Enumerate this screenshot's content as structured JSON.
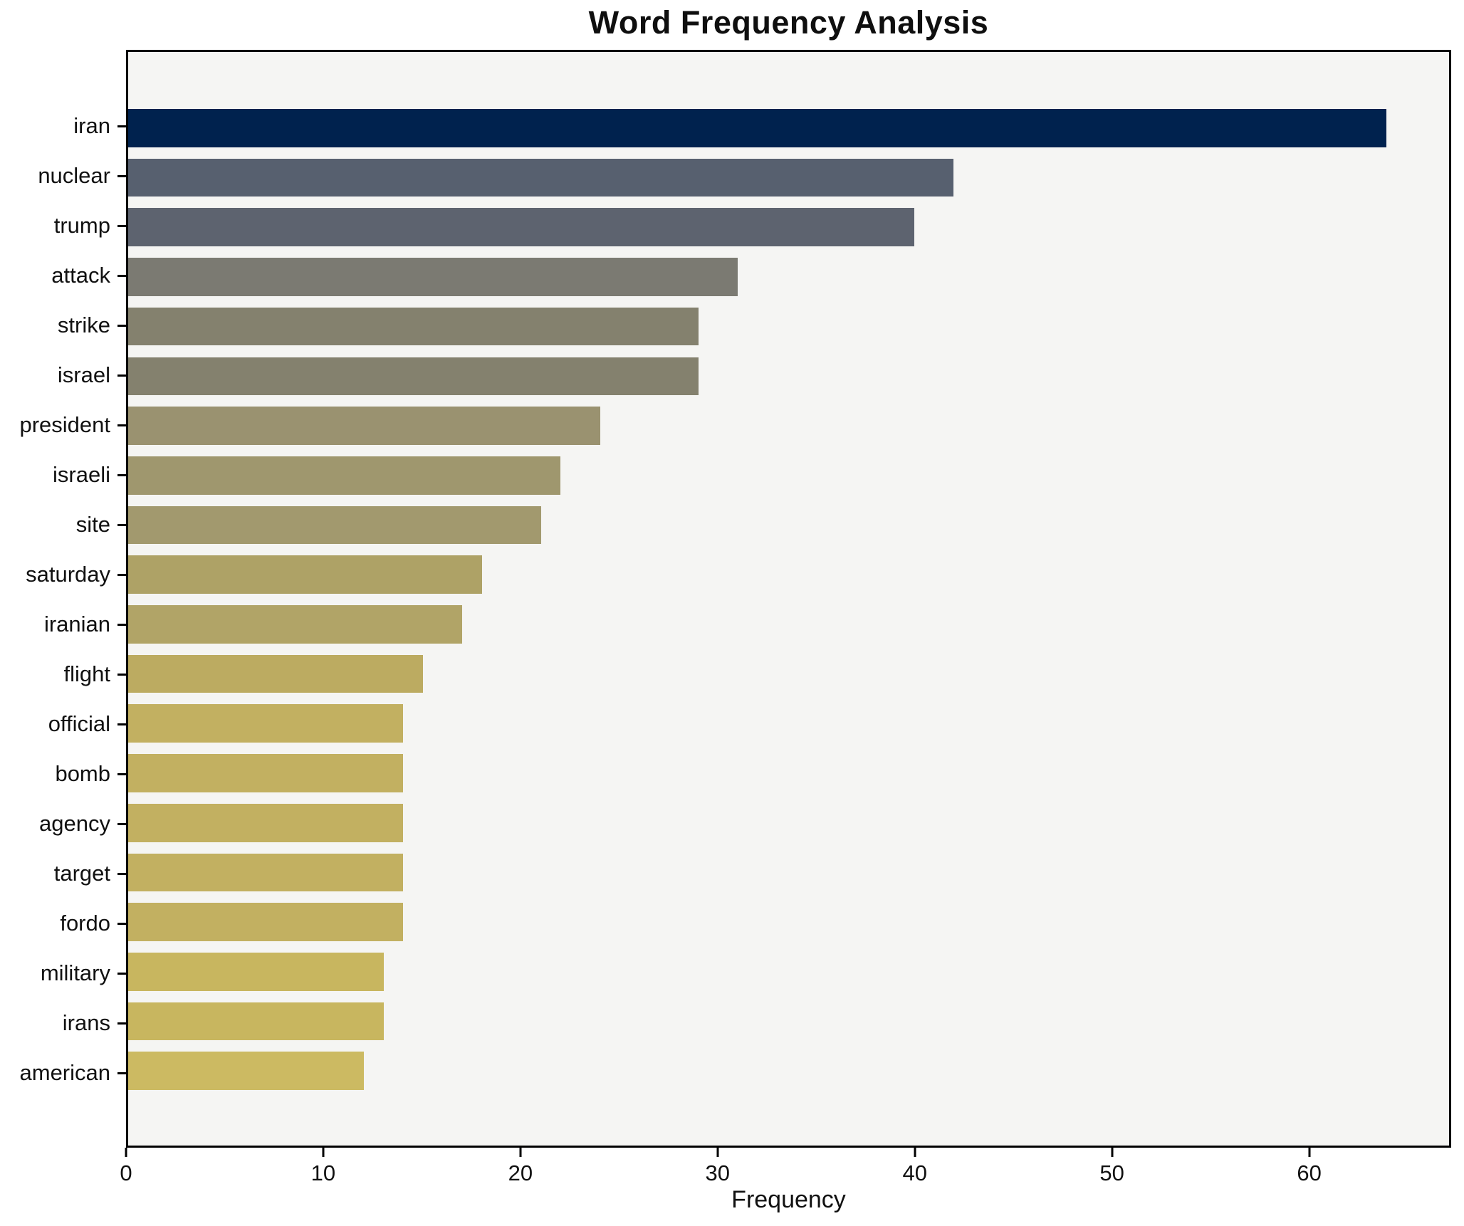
{
  "title": "Word Frequency Analysis",
  "chart_data": {
    "type": "bar",
    "orientation": "horizontal",
    "title": "Word Frequency Analysis",
    "xlabel": "Frequency",
    "ylabel": "",
    "categories": [
      "iran",
      "nuclear",
      "trump",
      "attack",
      "strike",
      "israel",
      "president",
      "israeli",
      "site",
      "saturday",
      "iranian",
      "flight",
      "official",
      "bomb",
      "agency",
      "target",
      "fordo",
      "military",
      "irans",
      "american"
    ],
    "values": [
      64,
      42,
      40,
      31,
      29,
      29,
      24,
      22,
      21,
      18,
      17,
      15,
      14,
      14,
      14,
      14,
      14,
      13,
      13,
      12
    ],
    "bar_colors": [
      "#00224e",
      "#57606f",
      "#5d636f",
      "#7b7a72",
      "#84816e",
      "#84816e",
      "#9a9270",
      "#9f976e",
      "#a2996e",
      "#aea266",
      "#b1a467",
      "#bcab61",
      "#c2b061",
      "#c2b061",
      "#c2b061",
      "#c2b061",
      "#c2b061",
      "#c8b65f",
      "#c8b65f",
      "#ccba62"
    ],
    "xlim": [
      0,
      67.2
    ],
    "x_ticks": [
      0,
      10,
      20,
      30,
      40,
      50,
      60
    ],
    "grid": false,
    "legend": null,
    "plot_background": "#f5f5f3",
    "figure_background": "#ffffff",
    "spine_color": "#000000",
    "colormap": "cividis"
  }
}
